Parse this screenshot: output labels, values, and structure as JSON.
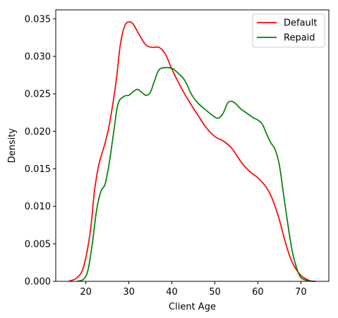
{
  "chart_data": {
    "type": "line",
    "title": "",
    "xlabel": "Client Age",
    "ylabel": "Density",
    "xlim": [
      13.0,
      76.5
    ],
    "ylim": [
      0.0,
      0.0362
    ],
    "xticks": [
      20,
      30,
      40,
      50,
      60,
      70
    ],
    "yticks": [
      0.0,
      0.005,
      0.01,
      0.015,
      0.02,
      0.025,
      0.03,
      0.035
    ],
    "ytick_labels": [
      "0.000",
      "0.005",
      "0.010",
      "0.015",
      "0.020",
      "0.025",
      "0.030",
      "0.035"
    ],
    "xtick_labels": [
      "20",
      "30",
      "40",
      "50",
      "60",
      "70"
    ],
    "grid": false,
    "legend": "top-right",
    "series": [
      {
        "name": "Default",
        "color": "#ff0000",
        "points": [
          [
            16,
            0.0
          ],
          [
            18,
            0.0005
          ],
          [
            19.5,
            0.002
          ],
          [
            21,
            0.0065
          ],
          [
            22,
            0.012
          ],
          [
            23,
            0.0155
          ],
          [
            24.5,
            0.0185
          ],
          [
            25.5,
            0.021
          ],
          [
            27,
            0.0265
          ],
          [
            28,
            0.0315
          ],
          [
            29,
            0.034
          ],
          [
            30,
            0.0346
          ],
          [
            31,
            0.0343
          ],
          [
            32.5,
            0.0328
          ],
          [
            34,
            0.0315
          ],
          [
            35.5,
            0.0312
          ],
          [
            37,
            0.0312
          ],
          [
            38.5,
            0.0303
          ],
          [
            40,
            0.0283
          ],
          [
            42,
            0.026
          ],
          [
            44,
            0.024
          ],
          [
            46,
            0.0222
          ],
          [
            48,
            0.0205
          ],
          [
            50,
            0.0193
          ],
          [
            52,
            0.0187
          ],
          [
            54,
            0.0177
          ],
          [
            56,
            0.016
          ],
          [
            58,
            0.0147
          ],
          [
            60,
            0.0138
          ],
          [
            62,
            0.0125
          ],
          [
            63.5,
            0.0108
          ],
          [
            65,
            0.0082
          ],
          [
            66.5,
            0.005
          ],
          [
            68,
            0.0025
          ],
          [
            70,
            0.0008
          ],
          [
            72,
            0.0001
          ],
          [
            73.5,
            0.0
          ]
        ]
      },
      {
        "name": "Repaid",
        "color": "#008000",
        "points": [
          [
            18,
            0.0
          ],
          [
            19.5,
            0.0003
          ],
          [
            20.5,
            0.0015
          ],
          [
            21.5,
            0.005
          ],
          [
            22.5,
            0.0095
          ],
          [
            23.5,
            0.012
          ],
          [
            24.5,
            0.013
          ],
          [
            25.5,
            0.016
          ],
          [
            26.5,
            0.02
          ],
          [
            27.5,
            0.0237
          ],
          [
            29,
            0.0247
          ],
          [
            30,
            0.0248
          ],
          [
            31,
            0.0253
          ],
          [
            32,
            0.0256
          ],
          [
            33,
            0.0252
          ],
          [
            34,
            0.0248
          ],
          [
            35,
            0.0252
          ],
          [
            36,
            0.0268
          ],
          [
            37,
            0.0282
          ],
          [
            38.5,
            0.0285
          ],
          [
            40,
            0.0284
          ],
          [
            41,
            0.028
          ],
          [
            43,
            0.0268
          ],
          [
            44.5,
            0.025
          ],
          [
            46,
            0.0238
          ],
          [
            48,
            0.0228
          ],
          [
            50,
            0.0219
          ],
          [
            51,
            0.0218
          ],
          [
            52,
            0.0225
          ],
          [
            53,
            0.0238
          ],
          [
            54,
            0.024
          ],
          [
            55,
            0.0236
          ],
          [
            56,
            0.023
          ],
          [
            57,
            0.0226
          ],
          [
            58,
            0.0222
          ],
          [
            59,
            0.0218
          ],
          [
            60,
            0.0215
          ],
          [
            61,
            0.021
          ],
          [
            62,
            0.0197
          ],
          [
            63,
            0.0185
          ],
          [
            64,
            0.0176
          ],
          [
            65,
            0.0155
          ],
          [
            66,
            0.0115
          ],
          [
            67,
            0.0075
          ],
          [
            68,
            0.004
          ],
          [
            69,
            0.0018
          ],
          [
            70,
            0.0005
          ],
          [
            71.5,
            0.0001
          ],
          [
            73,
            0.0
          ]
        ]
      }
    ]
  }
}
